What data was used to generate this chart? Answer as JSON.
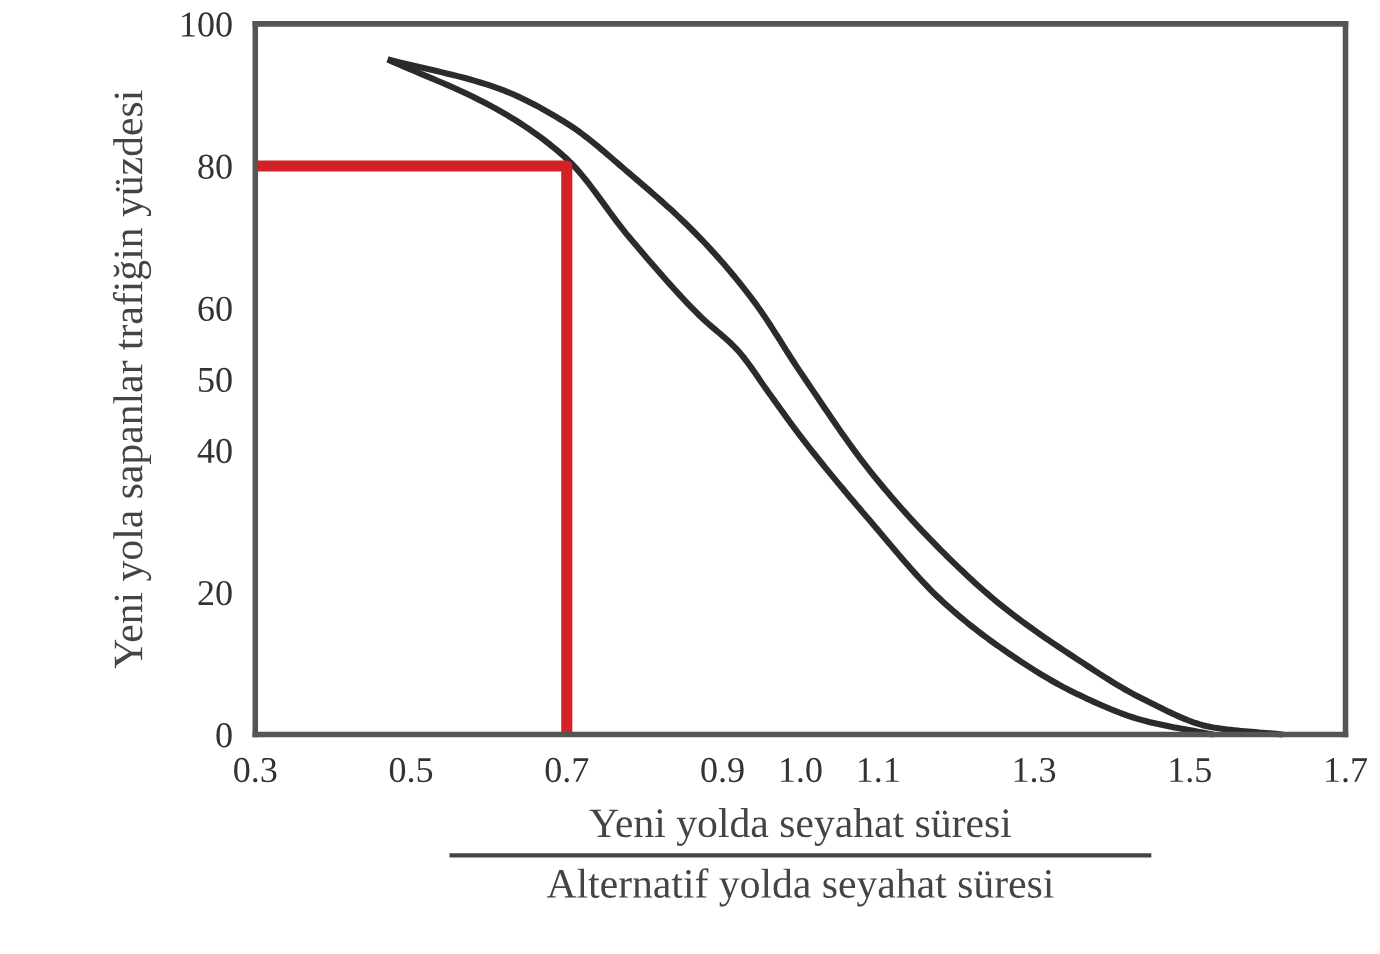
{
  "chart_data": {
    "type": "line",
    "xlabel": "Yeni yolda seyahat süresi\nAlternatif yolda seyahat süresi",
    "ylabel": "Yeni yola sapanlar trafiğin yüzdesi",
    "xlim": [
      0.3,
      1.7
    ],
    "xticks": [
      0.3,
      0.5,
      0.7,
      0.9,
      {
        "value": 1.0,
        "label": "1.0"
      },
      1.1,
      1.3,
      1.5,
      1.7
    ],
    "ylim": [
      0,
      100
    ],
    "yticks": [
      0,
      20,
      40,
      50,
      60,
      80,
      100
    ],
    "grid": false,
    "legend": false,
    "marker": "none",
    "line_style": "solid",
    "series": [
      {
        "color": "#2b2b2b",
        "x": [
          0.47,
          0.61,
          0.7,
          0.78,
          0.87,
          0.92,
          0.96,
          1.0,
          1.09,
          1.18,
          1.26,
          1.35,
          1.44,
          1.53
        ],
        "values": [
          95,
          88,
          81,
          70,
          59,
          54,
          48,
          42,
          30,
          19,
          12,
          6,
          2,
          0
        ]
      },
      {
        "color": "#2b2b2b",
        "x": [
          0.47,
          0.61,
          0.7,
          0.78,
          0.87,
          0.94,
          1.0,
          1.09,
          1.18,
          1.26,
          1.35,
          1.44,
          1.53,
          1.62
        ],
        "values": [
          95,
          91,
          86,
          79,
          70,
          61,
          51,
          37,
          26,
          18,
          11,
          5,
          1,
          0
        ]
      },
      {
        "color": "#d42027",
        "x": [
          0.3,
          0.7,
          0.7
        ],
        "values": [
          80,
          80,
          0
        ]
      }
    ]
  }
}
